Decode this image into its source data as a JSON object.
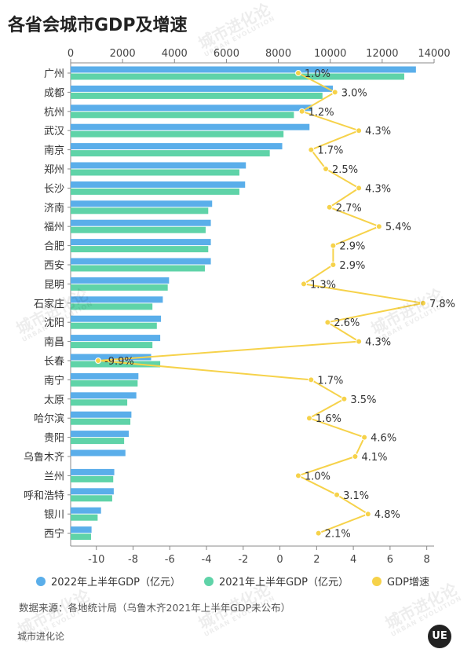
{
  "title": "各省会城市GDP及增速",
  "chart_data": {
    "type": "bar",
    "orientation": "horizontal",
    "categories": [
      "广州",
      "成都",
      "杭州",
      "武汉",
      "南京",
      "郑州",
      "长沙",
      "济南",
      "福州",
      "合肥",
      "西安",
      "昆明",
      "石家庄",
      "沈阳",
      "南昌",
      "长春",
      "南宁",
      "太原",
      "哈尔滨",
      "贵阳",
      "乌鲁木齐",
      "兰州",
      "呼和浩特",
      "银川",
      "西宁"
    ],
    "series": [
      {
        "name": "2022年上半年GDP（亿元）",
        "color": "#5aaeea",
        "axis": "top",
        "values": [
          13300,
          10100,
          9300,
          9200,
          8150,
          6750,
          6720,
          5450,
          5400,
          5400,
          5400,
          3790,
          3550,
          3480,
          3450,
          3100,
          2610,
          2530,
          2340,
          2240,
          2110,
          1680,
          1660,
          1170,
          805
        ]
      },
      {
        "name": "2021年上半年GDP（亿元）",
        "color": "#5fd3a8",
        "axis": "top",
        "values": [
          12850,
          9700,
          8600,
          8200,
          7670,
          6500,
          6500,
          5300,
          5200,
          5300,
          5170,
          3740,
          3150,
          3320,
          3150,
          3450,
          2580,
          2180,
          2300,
          2060,
          null,
          1640,
          1600,
          1040,
          785
        ]
      },
      {
        "name": "GDP增速",
        "color": "#f6d24a",
        "axis": "bottom",
        "type": "line",
        "values": [
          1.0,
          3.0,
          1.2,
          4.3,
          1.7,
          2.5,
          4.3,
          2.7,
          5.4,
          2.9,
          2.9,
          1.3,
          7.8,
          2.6,
          4.3,
          -9.9,
          1.7,
          3.5,
          1.6,
          4.6,
          4.1,
          1.0,
          3.1,
          4.8,
          2.1
        ],
        "labels": [
          "1.0%",
          "3.0%",
          "1.2%",
          "4.3%",
          "1.7%",
          "2.5%",
          "4.3%",
          "2.7%",
          "5.4%",
          "2.9%",
          "2.9%",
          "1.3%",
          "7.8%",
          "2.6%",
          "4.3%",
          "-9.9%",
          "1.7%",
          "3.5%",
          "1.6%",
          "4.6%",
          "4.1%",
          "1.0%",
          "3.1%",
          "4.8%",
          "2.1%"
        ]
      }
    ],
    "top_axis": {
      "range": [
        0,
        14000
      ],
      "ticks": [
        "0",
        "2000",
        "4000",
        "6000",
        "8000",
        "10000",
        "12000",
        "14000"
      ],
      "tick_values": [
        0,
        2000,
        4000,
        6000,
        8000,
        10000,
        12000,
        14000
      ]
    },
    "bottom_axis": {
      "range": [
        -11.4,
        8.4
      ],
      "ticks": [
        "-10",
        "-8",
        "-6",
        "-4",
        "-2",
        "0",
        "2",
        "4",
        "6",
        "8"
      ],
      "tick_values": [
        -10,
        -8,
        -6,
        -4,
        -2,
        0,
        2,
        4,
        6,
        8
      ]
    },
    "legend_position": "bottom",
    "grid": false
  },
  "legend": [
    {
      "label": "2022年上半年GDP（亿元）",
      "color": "#5aaeea"
    },
    {
      "label": "2021年上半年GDP（亿元）",
      "color": "#5fd3a8"
    },
    {
      "label": "GDP增速",
      "color": "#f6d24a"
    }
  ],
  "source": "数据来源：各地统计局（乌鲁木齐2021年上半年GDP未公布）",
  "brand": "城市进化论",
  "logo_text": "UE",
  "watermark": {
    "cn": "城市进化论",
    "en": "URBAN EVOLUTION"
  }
}
